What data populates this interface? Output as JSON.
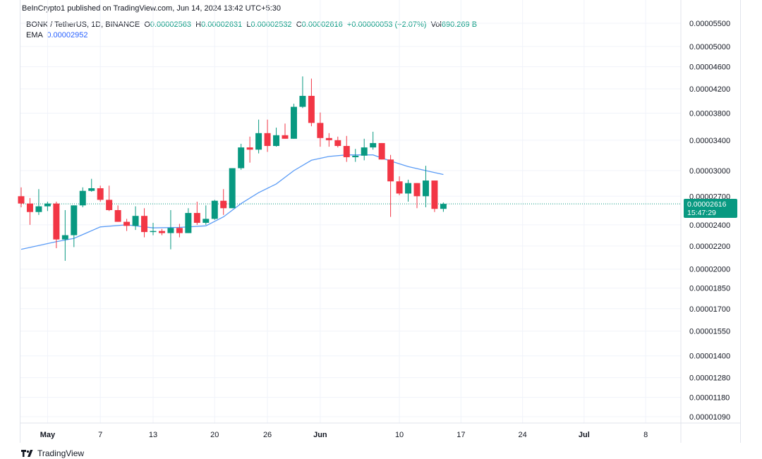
{
  "publisher_line": "BeInCrypto1 published on TradingView.com, Jun 14, 2024 13:42 UTC+5:30",
  "legend": {
    "symbol": "BONK / TetherUS, 1D, BINANCE",
    "open_label": "O",
    "open": "0.00002563",
    "high_label": "H",
    "high": "0.00002631",
    "low_label": "L",
    "low": "0.00002532",
    "close_label": "C",
    "close": "0.00002616",
    "change": "+0.00000053 (+2.07%)",
    "vol_label": "Vol",
    "vol": "690.269 B",
    "ema_label": "EMA",
    "ema": "0.00002952"
  },
  "price_badge": {
    "price": "0.00002616",
    "countdown": "15:47:29"
  },
  "footer": {
    "brand": "TradingView"
  },
  "colors": {
    "up": "#089981",
    "down": "#f23645",
    "ema": "#5b9cf6",
    "grid": "#f0f3fa",
    "last_price_line": "#089981"
  },
  "chart_data": {
    "type": "candlestick",
    "scale": "log",
    "price_axis_ticks": [
      "0.00005500",
      "0.00005000",
      "0.00004600",
      "0.00004200",
      "0.00003800",
      "0.00003400",
      "0.00003000",
      "0.00002700",
      "0.00002400",
      "0.00002200",
      "0.00002000",
      "0.00001850",
      "0.00001700",
      "0.00001550",
      "0.00001400",
      "0.00001280",
      "0.00001180",
      "0.00001090"
    ],
    "time_axis_ticks": [
      {
        "label": "May",
        "date": "2024-05-01",
        "bold": true
      },
      {
        "label": "7",
        "date": "2024-05-07",
        "bold": false
      },
      {
        "label": "13",
        "date": "2024-05-13",
        "bold": false
      },
      {
        "label": "20",
        "date": "2024-05-20",
        "bold": false
      },
      {
        "label": "26",
        "date": "2024-05-26",
        "bold": false
      },
      {
        "label": "Jun",
        "date": "2024-06-01",
        "bold": true
      },
      {
        "label": "10",
        "date": "2024-06-10",
        "bold": false
      },
      {
        "label": "17",
        "date": "2024-06-17",
        "bold": false
      },
      {
        "label": "24",
        "date": "2024-06-24",
        "bold": false
      },
      {
        "label": "Jul",
        "date": "2024-07-01",
        "bold": true
      },
      {
        "label": "8",
        "date": "2024-07-08",
        "bold": false
      }
    ],
    "x_range": [
      "2024-04-28",
      "2024-07-12"
    ],
    "last_price": 2.616e-05,
    "candles": [
      {
        "date": "2024-04-28",
        "o": 2.7e-05,
        "h": 2.8e-05,
        "l": 2.58e-05,
        "c": 2.62e-05
      },
      {
        "date": "2024-04-29",
        "o": 2.62e-05,
        "h": 2.68e-05,
        "l": 2.4e-05,
        "c": 2.53e-05
      },
      {
        "date": "2024-04-30",
        "o": 2.53e-05,
        "h": 2.78e-05,
        "l": 2.5e-05,
        "c": 2.59e-05
      },
      {
        "date": "2024-05-01",
        "o": 2.59e-05,
        "h": 2.64e-05,
        "l": 2.54e-05,
        "c": 2.62e-05
      },
      {
        "date": "2024-05-02",
        "o": 2.62e-05,
        "h": 2.64e-05,
        "l": 2.18e-05,
        "c": 2.26e-05
      },
      {
        "date": "2024-05-03",
        "o": 2.26e-05,
        "h": 2.55e-05,
        "l": 2.07e-05,
        "c": 2.3e-05
      },
      {
        "date": "2024-05-04",
        "o": 2.3e-05,
        "h": 2.6e-05,
        "l": 2.19e-05,
        "c": 2.6e-05
      },
      {
        "date": "2024-05-05",
        "o": 2.6e-05,
        "h": 2.8e-05,
        "l": 2.58e-05,
        "c": 2.76e-05
      },
      {
        "date": "2024-05-06",
        "o": 2.76e-05,
        "h": 2.9e-05,
        "l": 2.75e-05,
        "c": 2.79e-05
      },
      {
        "date": "2024-05-07",
        "o": 2.79e-05,
        "h": 2.82e-05,
        "l": 2.64e-05,
        "c": 2.66e-05
      },
      {
        "date": "2024-05-08",
        "o": 2.66e-05,
        "h": 2.82e-05,
        "l": 2.54e-05,
        "c": 2.55e-05
      },
      {
        "date": "2024-05-09",
        "o": 2.55e-05,
        "h": 2.6e-05,
        "l": 2.43e-05,
        "c": 2.43e-05
      },
      {
        "date": "2024-05-10",
        "o": 2.43e-05,
        "h": 2.46e-05,
        "l": 2.34e-05,
        "c": 2.39e-05
      },
      {
        "date": "2024-05-11",
        "o": 2.39e-05,
        "h": 2.59e-05,
        "l": 2.35e-05,
        "c": 2.49e-05
      },
      {
        "date": "2024-05-12",
        "o": 2.49e-05,
        "h": 2.57e-05,
        "l": 2.28e-05,
        "c": 2.33e-05
      },
      {
        "date": "2024-05-13",
        "o": 2.33e-05,
        "h": 2.42e-05,
        "l": 2.3e-05,
        "c": 2.34e-05
      },
      {
        "date": "2024-05-14",
        "o": 2.34e-05,
        "h": 2.36e-05,
        "l": 2.3e-05,
        "c": 2.32e-05
      },
      {
        "date": "2024-05-15",
        "o": 2.32e-05,
        "h": 2.55e-05,
        "l": 2.17e-05,
        "c": 2.37e-05
      },
      {
        "date": "2024-05-16",
        "o": 2.37e-05,
        "h": 2.41e-05,
        "l": 2.28e-05,
        "c": 2.32e-05
      },
      {
        "date": "2024-05-17",
        "o": 2.32e-05,
        "h": 2.57e-05,
        "l": 2.32e-05,
        "c": 2.52e-05
      },
      {
        "date": "2024-05-18",
        "o": 2.52e-05,
        "h": 2.64e-05,
        "l": 2.4e-05,
        "c": 2.42e-05
      },
      {
        "date": "2024-05-19",
        "o": 2.42e-05,
        "h": 2.6e-05,
        "l": 2.4e-05,
        "c": 2.46e-05
      },
      {
        "date": "2024-05-20",
        "o": 2.46e-05,
        "h": 2.66e-05,
        "l": 2.45e-05,
        "c": 2.65e-05
      },
      {
        "date": "2024-05-21",
        "o": 2.65e-05,
        "h": 2.78e-05,
        "l": 2.5e-05,
        "c": 2.57e-05
      },
      {
        "date": "2024-05-22",
        "o": 2.57e-05,
        "h": 3.03e-05,
        "l": 2.57e-05,
        "c": 3.03e-05
      },
      {
        "date": "2024-05-23",
        "o": 3.03e-05,
        "h": 3.35e-05,
        "l": 3.01e-05,
        "c": 3.3e-05
      },
      {
        "date": "2024-05-24",
        "o": 3.3e-05,
        "h": 3.45e-05,
        "l": 3.1e-05,
        "c": 3.27e-05
      },
      {
        "date": "2024-05-25",
        "o": 3.27e-05,
        "h": 3.7e-05,
        "l": 3.22e-05,
        "c": 3.5e-05
      },
      {
        "date": "2024-05-26",
        "o": 3.5e-05,
        "h": 3.7e-05,
        "l": 3.24e-05,
        "c": 3.32e-05
      },
      {
        "date": "2024-05-27",
        "o": 3.32e-05,
        "h": 3.58e-05,
        "l": 3.31e-05,
        "c": 3.47e-05
      },
      {
        "date": "2024-05-28",
        "o": 3.47e-05,
        "h": 3.64e-05,
        "l": 3.42e-05,
        "c": 3.42e-05
      },
      {
        "date": "2024-05-29",
        "o": 3.42e-05,
        "h": 3.95e-05,
        "l": 3.42e-05,
        "c": 3.9e-05
      },
      {
        "date": "2024-05-30",
        "o": 3.9e-05,
        "h": 4.42e-05,
        "l": 3.88e-05,
        "c": 4.08e-05
      },
      {
        "date": "2024-05-31",
        "o": 4.08e-05,
        "h": 4.38e-05,
        "l": 3.6e-05,
        "c": 3.65e-05
      },
      {
        "date": "2024-06-01",
        "o": 3.65e-05,
        "h": 3.81e-05,
        "l": 3.31e-05,
        "c": 3.43e-05
      },
      {
        "date": "2024-06-02",
        "o": 3.43e-05,
        "h": 3.5e-05,
        "l": 3.31e-05,
        "c": 3.4e-05
      },
      {
        "date": "2024-06-03",
        "o": 3.4e-05,
        "h": 3.45e-05,
        "l": 3.3e-05,
        "c": 3.32e-05
      },
      {
        "date": "2024-06-04",
        "o": 3.32e-05,
        "h": 3.46e-05,
        "l": 3.11e-05,
        "c": 3.17e-05
      },
      {
        "date": "2024-06-05",
        "o": 3.17e-05,
        "h": 3.28e-05,
        "l": 3.11e-05,
        "c": 3.19e-05
      },
      {
        "date": "2024-06-06",
        "o": 3.19e-05,
        "h": 3.42e-05,
        "l": 3.13e-05,
        "c": 3.3e-05
      },
      {
        "date": "2024-06-07",
        "o": 3.3e-05,
        "h": 3.52e-05,
        "l": 3.27e-05,
        "c": 3.36e-05
      },
      {
        "date": "2024-06-08",
        "o": 3.36e-05,
        "h": 3.36e-05,
        "l": 3.14e-05,
        "c": 3.14e-05
      },
      {
        "date": "2024-06-09",
        "o": 3.14e-05,
        "h": 3.2e-05,
        "l": 2.48e-05,
        "c": 2.87e-05
      },
      {
        "date": "2024-06-10",
        "o": 2.87e-05,
        "h": 2.93e-05,
        "l": 2.71e-05,
        "c": 2.73e-05
      },
      {
        "date": "2024-06-11",
        "o": 2.73e-05,
        "h": 2.89e-05,
        "l": 2.64e-05,
        "c": 2.85e-05
      },
      {
        "date": "2024-06-12",
        "o": 2.85e-05,
        "h": 2.85e-05,
        "l": 2.57e-05,
        "c": 2.7e-05
      },
      {
        "date": "2024-06-13",
        "o": 2.7e-05,
        "h": 3.06e-05,
        "l": 2.58e-05,
        "c": 2.88e-05
      },
      {
        "date": "2024-06-14",
        "o": 2.88e-05,
        "h": 2.88e-05,
        "l": 2.53e-05,
        "c": 2.563e-05
      },
      {
        "date": "2024-06-15",
        "o": 2.563e-05,
        "h": 2.631e-05,
        "l": 2.532e-05,
        "c": 2.616e-05
      }
    ],
    "ema": [
      {
        "date": "2024-04-28",
        "v": 2.17e-05
      },
      {
        "date": "2024-05-02",
        "v": 2.24e-05
      },
      {
        "date": "2024-05-04",
        "v": 2.27e-05
      },
      {
        "date": "2024-05-07",
        "v": 2.38e-05
      },
      {
        "date": "2024-05-10",
        "v": 2.4e-05
      },
      {
        "date": "2024-05-13",
        "v": 2.37e-05
      },
      {
        "date": "2024-05-16",
        "v": 2.375e-05
      },
      {
        "date": "2024-05-19",
        "v": 2.39e-05
      },
      {
        "date": "2024-05-21",
        "v": 2.48e-05
      },
      {
        "date": "2024-05-23",
        "v": 2.62e-05
      },
      {
        "date": "2024-05-25",
        "v": 2.74e-05
      },
      {
        "date": "2024-05-27",
        "v": 2.84e-05
      },
      {
        "date": "2024-05-29",
        "v": 3e-05
      },
      {
        "date": "2024-05-31",
        "v": 3.13e-05
      },
      {
        "date": "2024-06-02",
        "v": 3.18e-05
      },
      {
        "date": "2024-06-04",
        "v": 3.2e-05
      },
      {
        "date": "2024-06-07",
        "v": 3.2e-05
      },
      {
        "date": "2024-06-09",
        "v": 3.12e-05
      },
      {
        "date": "2024-06-11",
        "v": 3.05e-05
      },
      {
        "date": "2024-06-13",
        "v": 3e-05
      },
      {
        "date": "2024-06-15",
        "v": 2.952e-05
      }
    ]
  }
}
